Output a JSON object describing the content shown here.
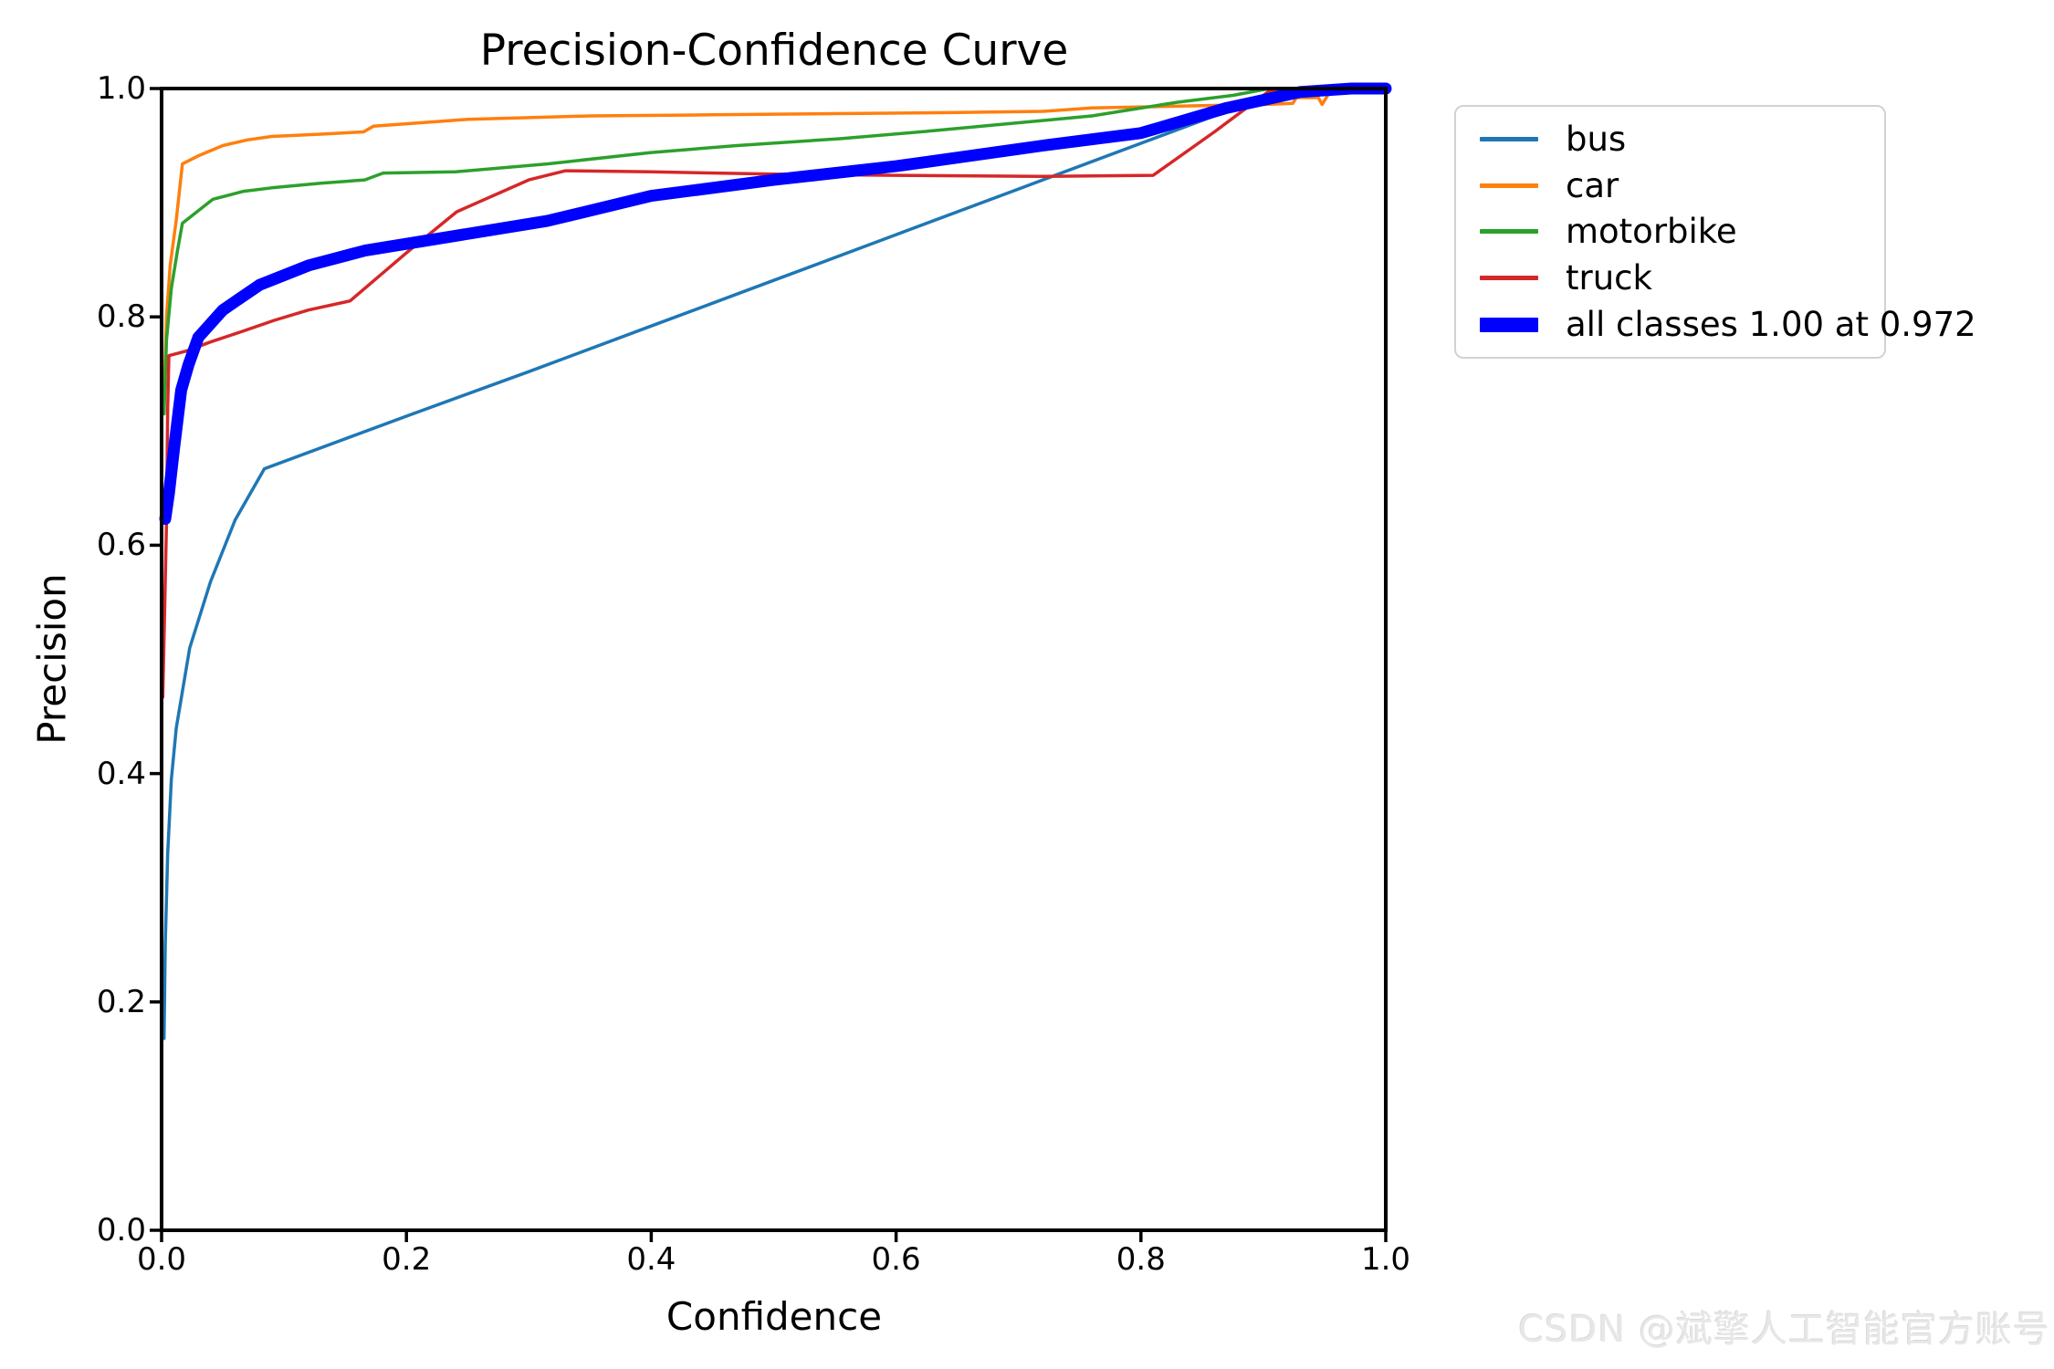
{
  "chart_data": {
    "type": "line",
    "title": "Precision-Confidence Curve",
    "xlabel": "Confidence",
    "ylabel": "Precision",
    "xlim": [
      0.0,
      1.0
    ],
    "ylim": [
      0.0,
      1.0
    ],
    "x_ticks": [
      "0.0",
      "0.2",
      "0.4",
      "0.6",
      "0.8",
      "1.0"
    ],
    "y_ticks": [
      "0.0",
      "0.2",
      "0.4",
      "0.6",
      "0.8",
      "1.0"
    ],
    "grid": false,
    "legend_position": "outside upper right",
    "axis_color": "#000000",
    "background_color": "#ffffff",
    "series": [
      {
        "name": "bus",
        "color": "#1f77b4",
        "emphasis": false,
        "points": [
          [
            0.002,
            0.168
          ],
          [
            0.003,
            0.25
          ],
          [
            0.005,
            0.33
          ],
          [
            0.008,
            0.395
          ],
          [
            0.012,
            0.44
          ],
          [
            0.023,
            0.51
          ],
          [
            0.04,
            0.568
          ],
          [
            0.06,
            0.622
          ],
          [
            0.084,
            0.667
          ],
          [
            0.2,
            0.713
          ],
          [
            0.3,
            0.752
          ],
          [
            0.4,
            0.792
          ],
          [
            0.5,
            0.832
          ],
          [
            0.6,
            0.872
          ],
          [
            0.7,
            0.912
          ],
          [
            0.8,
            0.952
          ],
          [
            0.86,
            0.976
          ],
          [
            0.915,
            1.0
          ],
          [
            1.0,
            1.0
          ]
        ]
      },
      {
        "name": "car",
        "color": "#ff7f0e",
        "emphasis": false,
        "points": [
          [
            0.002,
            0.73
          ],
          [
            0.004,
            0.8
          ],
          [
            0.007,
            0.845
          ],
          [
            0.012,
            0.885
          ],
          [
            0.017,
            0.934
          ],
          [
            0.03,
            0.941
          ],
          [
            0.05,
            0.95
          ],
          [
            0.07,
            0.955
          ],
          [
            0.09,
            0.958
          ],
          [
            0.13,
            0.96
          ],
          [
            0.165,
            0.962
          ],
          [
            0.173,
            0.967
          ],
          [
            0.25,
            0.973
          ],
          [
            0.35,
            0.976
          ],
          [
            0.45,
            0.977
          ],
          [
            0.55,
            0.978
          ],
          [
            0.65,
            0.979
          ],
          [
            0.72,
            0.98
          ],
          [
            0.76,
            0.983
          ],
          [
            0.85,
            0.985
          ],
          [
            0.9,
            0.986
          ],
          [
            0.924,
            0.987
          ],
          [
            0.927,
            0.992
          ],
          [
            0.945,
            0.992
          ],
          [
            0.948,
            0.986
          ],
          [
            0.956,
            1.0
          ],
          [
            1.0,
            1.0
          ]
        ]
      },
      {
        "name": "motorbike",
        "color": "#2ca02c",
        "emphasis": false,
        "points": [
          [
            0.002,
            0.715
          ],
          [
            0.004,
            0.78
          ],
          [
            0.008,
            0.825
          ],
          [
            0.013,
            0.858
          ],
          [
            0.017,
            0.882
          ],
          [
            0.03,
            0.893
          ],
          [
            0.042,
            0.903
          ],
          [
            0.067,
            0.91
          ],
          [
            0.09,
            0.913
          ],
          [
            0.13,
            0.917
          ],
          [
            0.166,
            0.92
          ],
          [
            0.181,
            0.926
          ],
          [
            0.24,
            0.927
          ],
          [
            0.315,
            0.934
          ],
          [
            0.4,
            0.944
          ],
          [
            0.47,
            0.95
          ],
          [
            0.554,
            0.956
          ],
          [
            0.63,
            0.963
          ],
          [
            0.7,
            0.97
          ],
          [
            0.76,
            0.976
          ],
          [
            0.83,
            0.988
          ],
          [
            0.875,
            0.994
          ],
          [
            0.905,
            1.0
          ],
          [
            1.0,
            1.0
          ]
        ]
      },
      {
        "name": "truck",
        "color": "#d62728",
        "emphasis": false,
        "points": [
          [
            0.001,
            0.467
          ],
          [
            0.004,
            0.62
          ],
          [
            0.005,
            0.72
          ],
          [
            0.006,
            0.766
          ],
          [
            0.02,
            0.77
          ],
          [
            0.04,
            0.778
          ],
          [
            0.065,
            0.787
          ],
          [
            0.092,
            0.797
          ],
          [
            0.12,
            0.806
          ],
          [
            0.154,
            0.814
          ],
          [
            0.2,
            0.856
          ],
          [
            0.241,
            0.892
          ],
          [
            0.3,
            0.92
          ],
          [
            0.33,
            0.928
          ],
          [
            0.4,
            0.927
          ],
          [
            0.5,
            0.925
          ],
          [
            0.6,
            0.924
          ],
          [
            0.718,
            0.923
          ],
          [
            0.81,
            0.924
          ],
          [
            0.86,
            0.962
          ],
          [
            0.905,
            0.998
          ],
          [
            0.92,
            1.0
          ],
          [
            1.0,
            1.0
          ]
        ]
      },
      {
        "name": "all classes 1.00 at 0.972",
        "color": "#0000ff",
        "emphasis": true,
        "points": [
          [
            0.003,
            0.623
          ],
          [
            0.006,
            0.645
          ],
          [
            0.01,
            0.683
          ],
          [
            0.016,
            0.736
          ],
          [
            0.022,
            0.758
          ],
          [
            0.03,
            0.782
          ],
          [
            0.05,
            0.806
          ],
          [
            0.08,
            0.828
          ],
          [
            0.12,
            0.845
          ],
          [
            0.166,
            0.858
          ],
          [
            0.24,
            0.871
          ],
          [
            0.315,
            0.884
          ],
          [
            0.4,
            0.906
          ],
          [
            0.5,
            0.92
          ],
          [
            0.6,
            0.932
          ],
          [
            0.72,
            0.95
          ],
          [
            0.8,
            0.961
          ],
          [
            0.87,
            0.983
          ],
          [
            0.93,
            0.997
          ],
          [
            0.972,
            1.0
          ],
          [
            1.0,
            1.0
          ]
        ]
      }
    ]
  },
  "watermark": {
    "text": "CSDN @斌擎人工智能官方账号"
  }
}
